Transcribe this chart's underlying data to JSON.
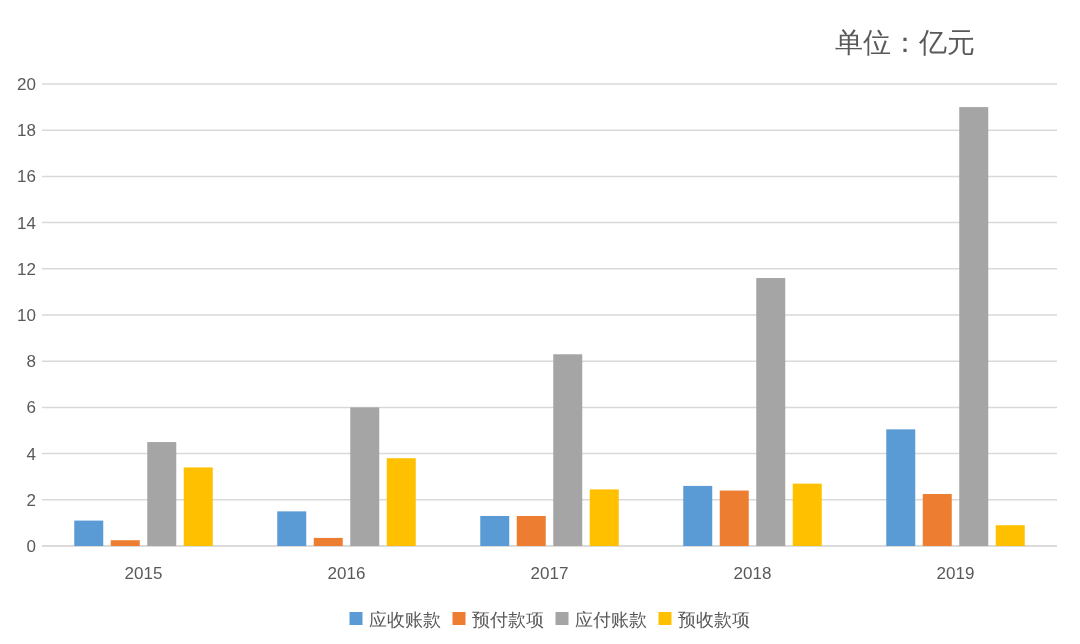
{
  "chart_data": {
    "type": "bar",
    "annotations": [
      "单位：亿元"
    ],
    "categories": [
      "2015",
      "2016",
      "2017",
      "2018",
      "2019"
    ],
    "series": [
      {
        "name": "应收账款",
        "color": "#5b9bd5",
        "values": [
          1.1,
          1.5,
          1.3,
          2.6,
          5.05
        ]
      },
      {
        "name": "预付款项",
        "color": "#ed7d31",
        "values": [
          0.25,
          0.35,
          1.3,
          2.4,
          2.25
        ]
      },
      {
        "name": "应付账款",
        "color": "#a5a5a5",
        "values": [
          4.5,
          6.0,
          8.3,
          11.6,
          19.0
        ]
      },
      {
        "name": "预收款项",
        "color": "#ffc000",
        "values": [
          3.4,
          3.8,
          2.45,
          2.7,
          0.9
        ]
      }
    ],
    "ylim": [
      0,
      20
    ],
    "yticks": [
      0,
      2,
      4,
      6,
      8,
      10,
      12,
      14,
      16,
      18,
      20
    ],
    "grid": "y",
    "legend": "bottom"
  }
}
